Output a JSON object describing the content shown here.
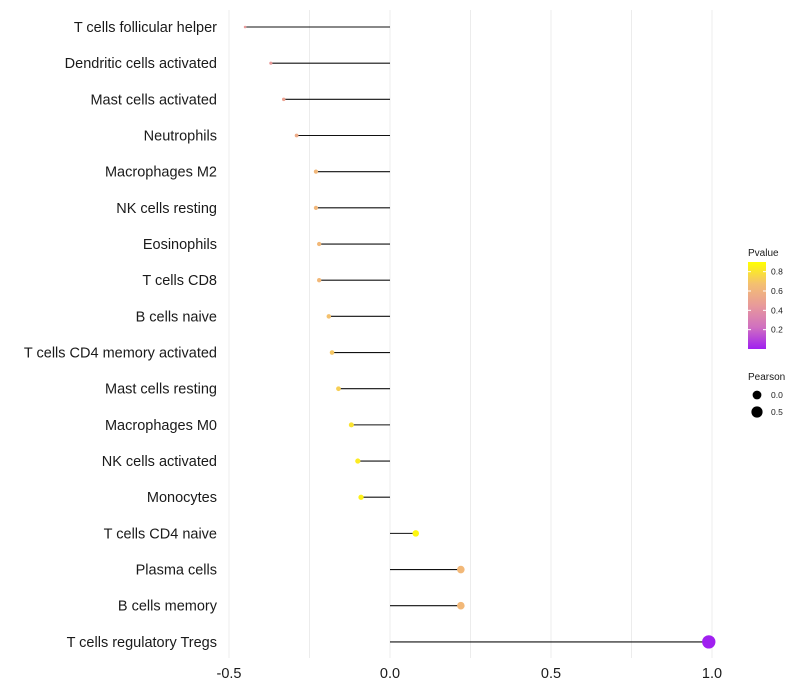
{
  "chart_data": {
    "type": "lollipop",
    "title": "",
    "xlabel": "",
    "ylabel": "",
    "xlim": [
      -0.5,
      1.0
    ],
    "xticks": [
      {
        "value": -0.5,
        "label": "-0.5"
      },
      {
        "value": 0.0,
        "label": "0.0"
      },
      {
        "value": 0.5,
        "label": "0.5"
      },
      {
        "value": 1.0,
        "label": "1.0"
      }
    ],
    "grid": "vertical",
    "points": [
      {
        "category": "T cells follicular helper",
        "pearson": -0.45,
        "pvalue": 0.45
      },
      {
        "category": "Dendritic cells activated",
        "pearson": -0.37,
        "pvalue": 0.45
      },
      {
        "category": "Mast cells activated",
        "pearson": -0.33,
        "pvalue": 0.5
      },
      {
        "category": "Neutrophils",
        "pearson": -0.29,
        "pvalue": 0.55
      },
      {
        "category": "Macrophages M2",
        "pearson": -0.23,
        "pvalue": 0.62
      },
      {
        "category": "NK cells resting",
        "pearson": -0.23,
        "pvalue": 0.62
      },
      {
        "category": "Eosinophils",
        "pearson": -0.22,
        "pvalue": 0.63
      },
      {
        "category": "T cells CD8",
        "pearson": -0.22,
        "pvalue": 0.63
      },
      {
        "category": "B cells naive",
        "pearson": -0.19,
        "pvalue": 0.68
      },
      {
        "category": "T cells CD4 memory activated",
        "pearson": -0.18,
        "pvalue": 0.7
      },
      {
        "category": "Mast cells resting",
        "pearson": -0.16,
        "pvalue": 0.73
      },
      {
        "category": "Macrophages M0",
        "pearson": -0.12,
        "pvalue": 0.8
      },
      {
        "category": "NK cells activated",
        "pearson": -0.1,
        "pvalue": 0.83
      },
      {
        "category": "Monocytes",
        "pearson": -0.09,
        "pvalue": 0.85
      },
      {
        "category": "T cells CD4 naive",
        "pearson": 0.08,
        "pvalue": 0.87
      },
      {
        "category": "Plasma cells",
        "pearson": 0.22,
        "pvalue": 0.63
      },
      {
        "category": "B cells memory",
        "pearson": 0.22,
        "pvalue": 0.63
      },
      {
        "category": "T cells regulatory  Tregs",
        "pearson": 0.99,
        "pvalue": 0.0
      }
    ],
    "legends": {
      "color": {
        "title": "Pvalue",
        "range": [
          0.0,
          0.9
        ],
        "ticks": [
          {
            "value": 0.2,
            "label": "0.2"
          },
          {
            "value": 0.4,
            "label": "0.4"
          },
          {
            "value": 0.6,
            "label": "0.6"
          },
          {
            "value": 0.8,
            "label": "0.8"
          }
        ],
        "gradient": [
          "#a020f0",
          "#d070c0",
          "#e89a9a",
          "#f4c070",
          "#ffff00"
        ]
      },
      "size": {
        "title": "Pearson",
        "entries": [
          {
            "value": 0.0,
            "label": "0.0"
          },
          {
            "value": 0.5,
            "label": "0.5"
          }
        ]
      }
    }
  }
}
